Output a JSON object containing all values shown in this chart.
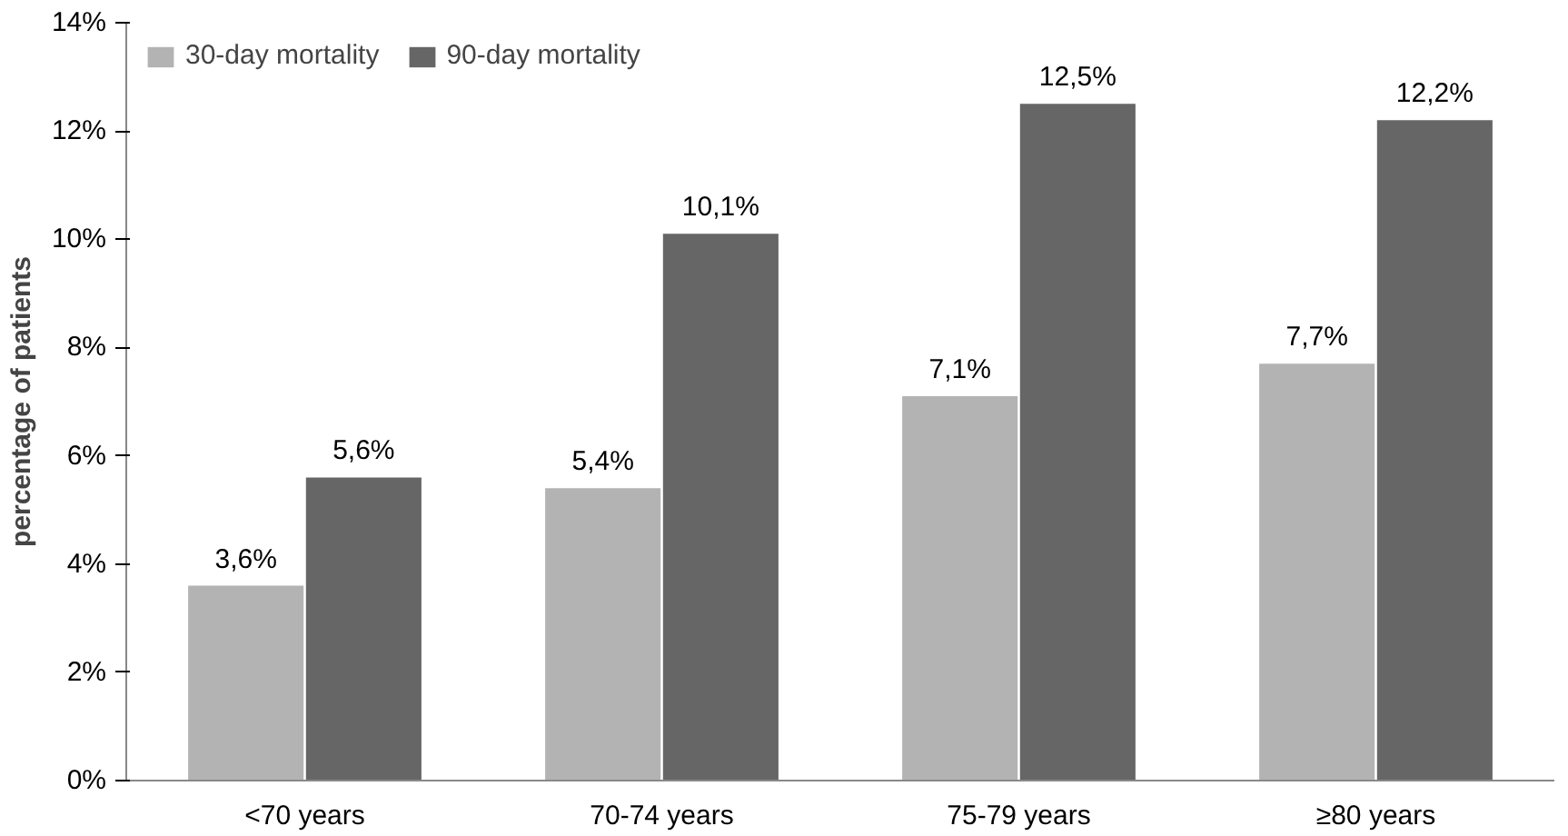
{
  "chart_data": {
    "type": "bar",
    "ylabel": "percentage of patients",
    "categories": [
      "<70 years",
      "70-74 years",
      "75-79 years",
      "≥80 years"
    ],
    "series": [
      {
        "name": "30-day mortality",
        "color": "#b3b3b3",
        "values": [
          3.6,
          5.4,
          7.1,
          7.7
        ],
        "value_labels": [
          "3,6%",
          "5,4%",
          "7,1%",
          "7,7%"
        ]
      },
      {
        "name": "90-day mortality",
        "color": "#666666",
        "values": [
          5.6,
          10.1,
          12.5,
          12.2
        ],
        "value_labels": [
          "5,6%",
          "10,1%",
          "12,5%",
          "12,2%"
        ]
      }
    ],
    "ylim": [
      0,
      14
    ],
    "yticks": [
      {
        "value": 0,
        "label": "0%"
      },
      {
        "value": 2,
        "label": "2%"
      },
      {
        "value": 4,
        "label": "4%"
      },
      {
        "value": 6,
        "label": "6%"
      },
      {
        "value": 8,
        "label": "8%"
      },
      {
        "value": 10,
        "label": "10%"
      },
      {
        "value": 12,
        "label": "12%"
      },
      {
        "value": 14,
        "label": "14%"
      }
    ],
    "grid": false,
    "legend": "top left"
  }
}
